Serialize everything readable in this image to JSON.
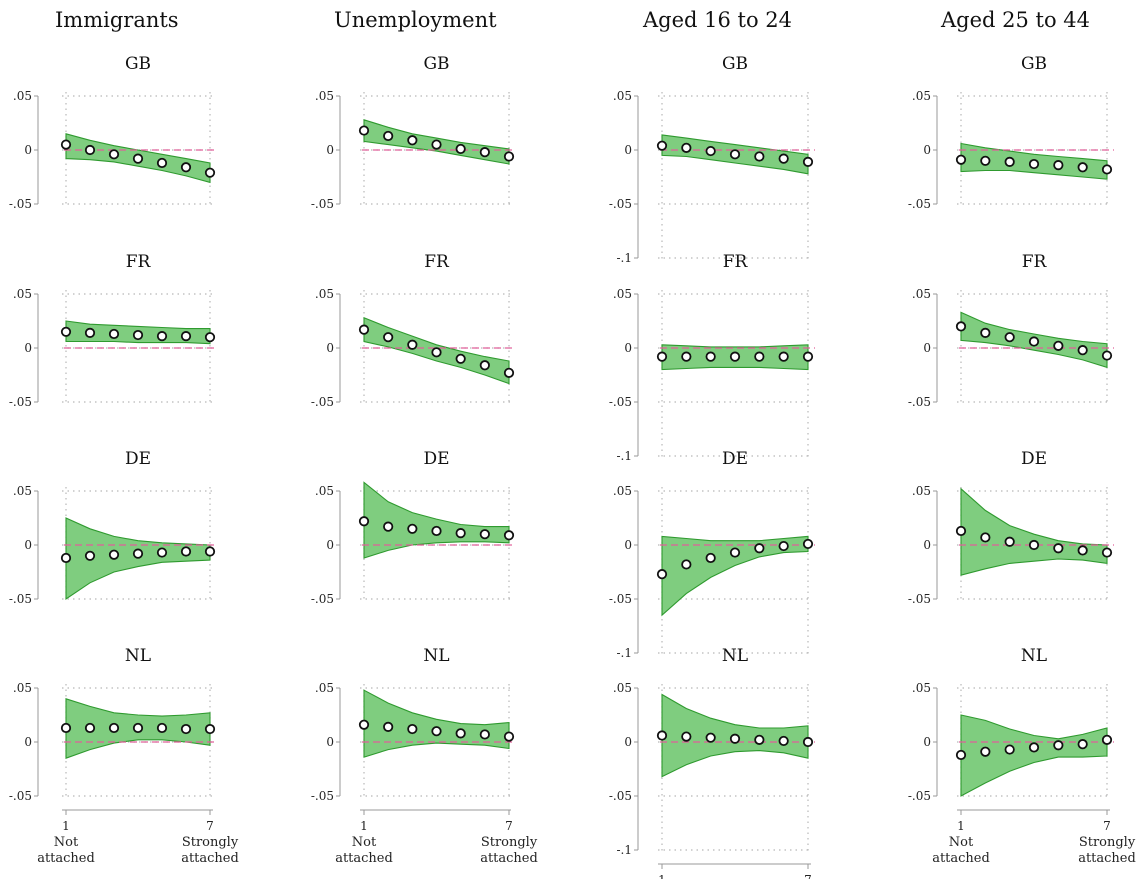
{
  "chart_data": {
    "type": "line",
    "colors": {
      "band_fill": "#7fcd7f",
      "band_stroke": "#2f9a2f",
      "reference_line": "#e0609a",
      "point": "#111111",
      "grid": "#b8b8b8"
    },
    "x": [
      1,
      2,
      3,
      4,
      5,
      6,
      7
    ],
    "x_tick_labels": [
      {
        "value": 1,
        "number": "1",
        "text": "Not attached"
      },
      {
        "value": 7,
        "number": "7",
        "text": "Strongly attached"
      }
    ],
    "columns": [
      {
        "title": "Immigrants",
        "panels": [
          {
            "country": "GB",
            "yticks": [
              ".05",
              "0",
              "-.05"
            ],
            "ytick_values": [
              0.05,
              0,
              -0.05
            ],
            "ylim": [
              -0.05,
              0.05
            ],
            "estimate": [
              0.005,
              0.0,
              -0.004,
              -0.008,
              -0.012,
              -0.016,
              -0.021
            ],
            "ci_upper": [
              0.015,
              0.009,
              0.004,
              0.0,
              -0.004,
              -0.008,
              -0.012
            ],
            "ci_lower": [
              -0.008,
              -0.009,
              -0.011,
              -0.015,
              -0.019,
              -0.024,
              -0.03
            ]
          },
          {
            "country": "FR",
            "yticks": [
              ".05",
              "0",
              "-.05"
            ],
            "ytick_values": [
              0.05,
              0,
              -0.05
            ],
            "ylim": [
              -0.05,
              0.05
            ],
            "estimate": [
              0.015,
              0.014,
              0.013,
              0.012,
              0.011,
              0.011,
              0.01
            ],
            "ci_upper": [
              0.025,
              0.022,
              0.021,
              0.02,
              0.019,
              0.018,
              0.018
            ],
            "ci_lower": [
              0.006,
              0.006,
              0.006,
              0.005,
              0.005,
              0.005,
              0.004
            ]
          },
          {
            "country": "DE",
            "yticks": [
              ".05",
              "0",
              "-.05"
            ],
            "ytick_values": [
              0.05,
              0,
              -0.05
            ],
            "ylim": [
              -0.05,
              0.05
            ],
            "estimate": [
              -0.012,
              -0.01,
              -0.009,
              -0.008,
              -0.007,
              -0.006,
              -0.006
            ],
            "ci_upper": [
              0.025,
              0.015,
              0.008,
              0.004,
              0.002,
              0.001,
              0.0
            ],
            "ci_lower": [
              -0.05,
              -0.035,
              -0.025,
              -0.02,
              -0.016,
              -0.015,
              -0.014
            ]
          },
          {
            "country": "NL",
            "yticks": [
              ".05",
              "0",
              "-.05"
            ],
            "ytick_values": [
              0.05,
              0,
              -0.05
            ],
            "ylim": [
              -0.05,
              0.05
            ],
            "estimate": [
              0.013,
              0.013,
              0.013,
              0.013,
              0.013,
              0.012,
              0.012
            ],
            "ci_upper": [
              0.04,
              0.033,
              0.027,
              0.025,
              0.024,
              0.025,
              0.027
            ],
            "ci_lower": [
              -0.015,
              -0.007,
              -0.001,
              0.002,
              0.002,
              0.0,
              -0.003
            ]
          }
        ]
      },
      {
        "title": "Unemployment",
        "panels": [
          {
            "country": "GB",
            "yticks": [
              ".05",
              "0",
              "-.05"
            ],
            "ytick_values": [
              0.05,
              0,
              -0.05
            ],
            "ylim": [
              -0.05,
              0.05
            ],
            "estimate": [
              0.018,
              0.013,
              0.009,
              0.005,
              0.001,
              -0.002,
              -0.006
            ],
            "ci_upper": [
              0.028,
              0.021,
              0.015,
              0.011,
              0.007,
              0.004,
              0.001
            ],
            "ci_lower": [
              0.008,
              0.005,
              0.002,
              -0.001,
              -0.005,
              -0.009,
              -0.013
            ]
          },
          {
            "country": "FR",
            "yticks": [
              ".05",
              "0",
              "-.05"
            ],
            "ytick_values": [
              0.05,
              0,
              -0.05
            ],
            "ylim": [
              -0.05,
              0.05
            ],
            "estimate": [
              0.017,
              0.01,
              0.003,
              -0.004,
              -0.01,
              -0.016,
              -0.023
            ],
            "ci_upper": [
              0.028,
              0.019,
              0.011,
              0.003,
              -0.003,
              -0.008,
              -0.012
            ],
            "ci_lower": [
              0.006,
              0.001,
              -0.005,
              -0.012,
              -0.018,
              -0.025,
              -0.033
            ]
          },
          {
            "country": "DE",
            "yticks": [
              ".05",
              "0",
              "-.05"
            ],
            "ytick_values": [
              0.05,
              0,
              -0.05
            ],
            "ylim": [
              -0.05,
              0.05
            ],
            "estimate": [
              0.022,
              0.017,
              0.015,
              0.013,
              0.011,
              0.01,
              0.009
            ],
            "ci_upper": [
              0.058,
              0.04,
              0.03,
              0.024,
              0.019,
              0.017,
              0.017
            ],
            "ci_lower": [
              -0.012,
              -0.005,
              0.0,
              0.002,
              0.003,
              0.003,
              0.002
            ]
          },
          {
            "country": "NL",
            "yticks": [
              ".05",
              "0",
              "-.05"
            ],
            "ytick_values": [
              0.05,
              0,
              -0.05
            ],
            "ylim": [
              -0.05,
              0.05
            ],
            "estimate": [
              0.016,
              0.014,
              0.012,
              0.01,
              0.008,
              0.007,
              0.005
            ],
            "ci_upper": [
              0.048,
              0.036,
              0.027,
              0.021,
              0.017,
              0.016,
              0.018
            ],
            "ci_lower": [
              -0.014,
              -0.007,
              -0.003,
              -0.001,
              -0.002,
              -0.003,
              -0.006
            ]
          }
        ]
      },
      {
        "title": "Aged 16 to 24",
        "panels": [
          {
            "country": "GB",
            "yticks": [
              ".05",
              "0",
              "-.05",
              "-.1"
            ],
            "ytick_values": [
              0.05,
              0,
              -0.05,
              -0.1
            ],
            "ylim": [
              -0.1,
              0.05
            ],
            "estimate": [
              0.004,
              0.002,
              -0.001,
              -0.004,
              -0.006,
              -0.008,
              -0.011
            ],
            "ci_upper": [
              0.014,
              0.011,
              0.008,
              0.005,
              0.002,
              -0.001,
              -0.004
            ],
            "ci_lower": [
              -0.005,
              -0.006,
              -0.009,
              -0.012,
              -0.015,
              -0.018,
              -0.022
            ]
          },
          {
            "country": "FR",
            "yticks": [
              ".05",
              "0",
              "-.05",
              "-.1"
            ],
            "ytick_values": [
              0.05,
              0,
              -0.05,
              -0.1
            ],
            "ylim": [
              -0.1,
              0.05
            ],
            "estimate": [
              -0.008,
              -0.008,
              -0.008,
              -0.008,
              -0.008,
              -0.008,
              -0.008
            ],
            "ci_upper": [
              0.003,
              0.002,
              0.001,
              0.001,
              0.001,
              0.002,
              0.003
            ],
            "ci_lower": [
              -0.02,
              -0.019,
              -0.018,
              -0.018,
              -0.018,
              -0.019,
              -0.02
            ]
          },
          {
            "country": "DE",
            "yticks": [
              ".05",
              "0",
              "-.05",
              "-.1"
            ],
            "ytick_values": [
              0.05,
              0,
              -0.05,
              -0.1
            ],
            "ylim": [
              -0.1,
              0.05
            ],
            "estimate": [
              -0.027,
              -0.018,
              -0.012,
              -0.007,
              -0.003,
              -0.001,
              0.001
            ],
            "ci_upper": [
              0.008,
              0.006,
              0.004,
              0.004,
              0.004,
              0.006,
              0.008
            ],
            "ci_lower": [
              -0.065,
              -0.045,
              -0.03,
              -0.019,
              -0.011,
              -0.007,
              -0.006
            ]
          },
          {
            "country": "NL",
            "yticks": [
              ".05",
              "0",
              "-.05",
              "-.1"
            ],
            "ytick_values": [
              0.05,
              0,
              -0.05,
              -0.1
            ],
            "ylim": [
              -0.1,
              0.05
            ],
            "estimate": [
              0.006,
              0.005,
              0.004,
              0.003,
              0.002,
              0.001,
              0.0
            ],
            "ci_upper": [
              0.044,
              0.031,
              0.022,
              0.016,
              0.013,
              0.013,
              0.015
            ],
            "ci_lower": [
              -0.032,
              -0.021,
              -0.013,
              -0.009,
              -0.008,
              -0.01,
              -0.015
            ]
          }
        ]
      },
      {
        "title": "Aged 25 to 44",
        "panels": [
          {
            "country": "GB",
            "yticks": [
              ".05",
              "0",
              "-.05"
            ],
            "ytick_values": [
              0.05,
              0,
              -0.05
            ],
            "ylim": [
              -0.05,
              0.05
            ],
            "estimate": [
              -0.009,
              -0.01,
              -0.011,
              -0.013,
              -0.014,
              -0.016,
              -0.018
            ],
            "ci_upper": [
              0.006,
              0.002,
              -0.001,
              -0.004,
              -0.006,
              -0.008,
              -0.01
            ],
            "ci_lower": [
              -0.02,
              -0.019,
              -0.019,
              -0.021,
              -0.023,
              -0.025,
              -0.027
            ]
          },
          {
            "country": "FR",
            "yticks": [
              ".05",
              "0",
              "-.05"
            ],
            "ytick_values": [
              0.05,
              0,
              -0.05
            ],
            "ylim": [
              -0.05,
              0.05
            ],
            "estimate": [
              0.02,
              0.014,
              0.01,
              0.006,
              0.002,
              -0.002,
              -0.007
            ],
            "ci_upper": [
              0.033,
              0.023,
              0.017,
              0.013,
              0.009,
              0.006,
              0.004
            ],
            "ci_lower": [
              0.007,
              0.005,
              0.002,
              -0.002,
              -0.006,
              -0.011,
              -0.018
            ]
          },
          {
            "country": "DE",
            "yticks": [
              ".05",
              "0",
              "-.05"
            ],
            "ytick_values": [
              0.05,
              0,
              -0.05
            ],
            "ylim": [
              -0.05,
              0.05
            ],
            "estimate": [
              0.013,
              0.007,
              0.003,
              0.0,
              -0.003,
              -0.005,
              -0.007
            ],
            "ci_upper": [
              0.052,
              0.032,
              0.018,
              0.01,
              0.004,
              0.001,
              0.0
            ],
            "ci_lower": [
              -0.028,
              -0.022,
              -0.017,
              -0.015,
              -0.013,
              -0.014,
              -0.017
            ]
          },
          {
            "country": "NL",
            "yticks": [
              ".05",
              "0",
              "-.05"
            ],
            "ytick_values": [
              0.05,
              0,
              -0.05
            ],
            "ylim": [
              -0.05,
              0.05
            ],
            "estimate": [
              -0.012,
              -0.009,
              -0.007,
              -0.005,
              -0.003,
              -0.002,
              0.002
            ],
            "ci_upper": [
              0.025,
              0.02,
              0.012,
              0.006,
              0.003,
              0.007,
              0.013
            ],
            "ci_lower": [
              -0.05,
              -0.038,
              -0.027,
              -0.019,
              -0.014,
              -0.014,
              -0.013
            ]
          }
        ]
      }
    ]
  }
}
